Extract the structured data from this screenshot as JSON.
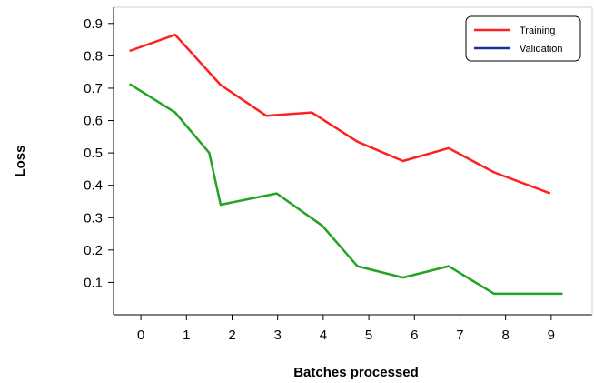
{
  "chart_data": {
    "type": "line",
    "xlabel": "Batches processed",
    "ylabel": "Loss",
    "xticks": [
      "0",
      "1",
      "2",
      "3",
      "4",
      "5",
      "6",
      "7",
      "8",
      "9"
    ],
    "yticks": [
      "0.1",
      "0.2",
      "0.3",
      "0.4",
      "0.5",
      "0.6",
      "0.7",
      "0.8",
      "0.9"
    ],
    "xlim": [
      -0.6,
      9.9
    ],
    "ylim": [
      0.0,
      0.95
    ],
    "grid": false,
    "legend": {
      "placement": "top-right",
      "entries": [
        {
          "name": "Training",
          "color": "#ff2020"
        },
        {
          "name": "Validation",
          "color": "#1f2f9a"
        }
      ]
    },
    "series": [
      {
        "name": "Training",
        "color": "#ff2020",
        "x": [
          -0.25,
          0.75,
          1.75,
          2.75,
          3.75,
          4.75,
          5.75,
          6.75,
          7.75,
          8.98
        ],
        "y": [
          0.815,
          0.865,
          0.71,
          0.615,
          0.625,
          0.535,
          0.475,
          0.515,
          0.44,
          0.375
        ]
      },
      {
        "color": "#22a322",
        "x": [
          -0.25,
          0.75,
          1.5,
          1.75,
          2.98,
          3.98,
          4.75,
          5.75,
          6.75,
          7.75,
          9.25
        ],
        "y": [
          0.713,
          0.625,
          0.5,
          0.34,
          0.375,
          0.275,
          0.15,
          0.115,
          0.15,
          0.065,
          0.065
        ]
      }
    ]
  }
}
